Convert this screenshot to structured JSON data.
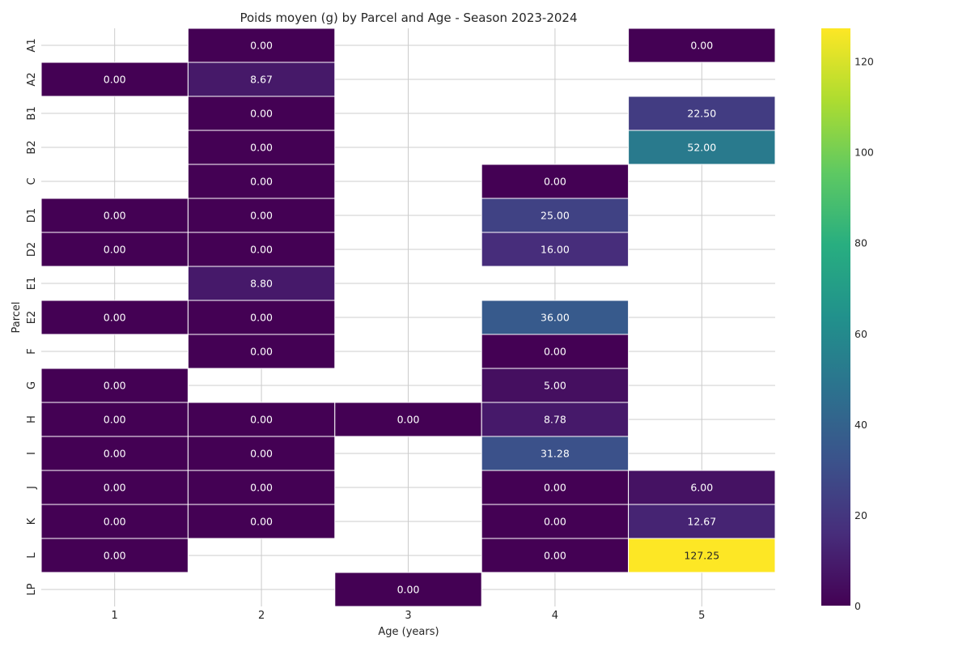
{
  "chart_data": {
    "type": "heatmap",
    "title": "Poids moyen (g) by Parcel and Age - Season 2023-2024",
    "xlabel": "Age (years)",
    "ylabel": "Parcel",
    "x_categories": [
      "1",
      "2",
      "3",
      "4",
      "5"
    ],
    "y_categories": [
      "A1",
      "A2",
      "B1",
      "B2",
      "C",
      "D1",
      "D2",
      "E1",
      "E2",
      "F",
      "G",
      "H",
      "I",
      "J",
      "K",
      "L",
      "LP"
    ],
    "values": [
      [
        null,
        0.0,
        null,
        null,
        0.0
      ],
      [
        0.0,
        8.67,
        null,
        null,
        null
      ],
      [
        null,
        0.0,
        null,
        null,
        22.5
      ],
      [
        null,
        0.0,
        null,
        null,
        52.0
      ],
      [
        null,
        0.0,
        null,
        0.0,
        null
      ],
      [
        0.0,
        0.0,
        null,
        25.0,
        null
      ],
      [
        0.0,
        0.0,
        null,
        16.0,
        null
      ],
      [
        null,
        8.8,
        null,
        null,
        null
      ],
      [
        0.0,
        0.0,
        null,
        36.0,
        null
      ],
      [
        null,
        0.0,
        null,
        0.0,
        null
      ],
      [
        0.0,
        null,
        null,
        5.0,
        null
      ],
      [
        0.0,
        0.0,
        0.0,
        8.78,
        null
      ],
      [
        0.0,
        0.0,
        null,
        31.28,
        null
      ],
      [
        0.0,
        0.0,
        null,
        0.0,
        6.0
      ],
      [
        0.0,
        0.0,
        null,
        0.0,
        12.67
      ],
      [
        0.0,
        null,
        null,
        0.0,
        127.25
      ],
      [
        null,
        null,
        0.0,
        null,
        null
      ]
    ],
    "value_format_decimals": 2,
    "colormap": "viridis",
    "colorbar": {
      "min": 0,
      "max": 127.25,
      "ticks": [
        "0",
        "20",
        "40",
        "60",
        "80",
        "100",
        "120"
      ]
    },
    "grid": true
  }
}
